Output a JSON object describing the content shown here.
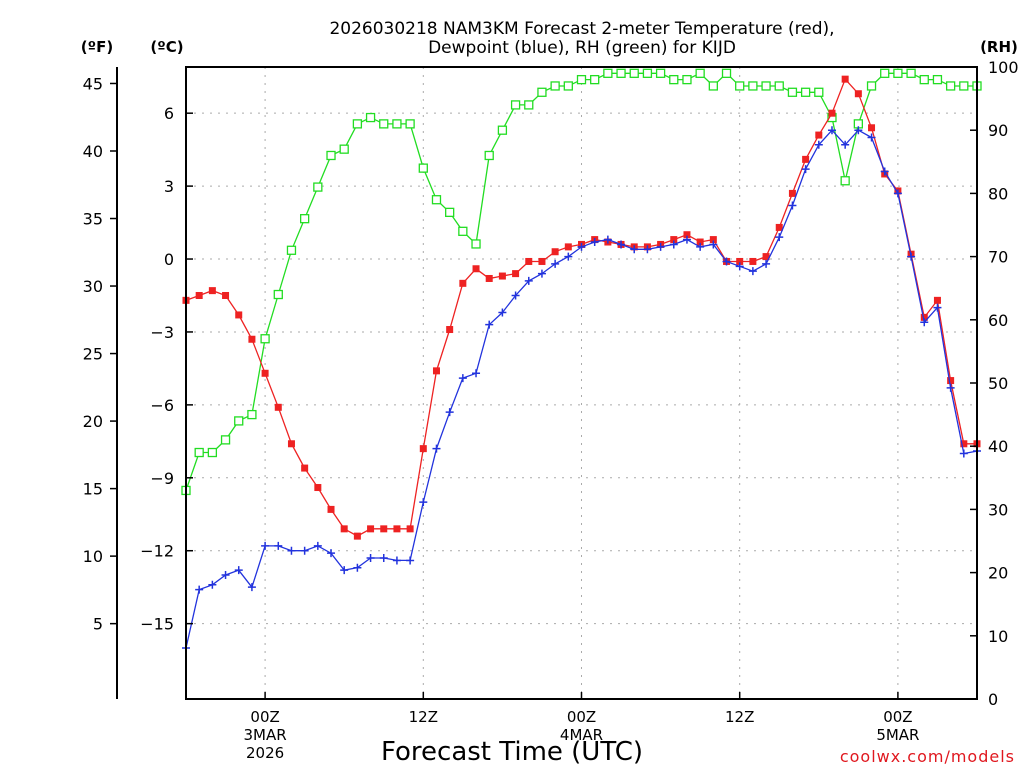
{
  "chart_data": {
    "type": "line",
    "title_line1": "2026030218 NAM3KM Forecast 2-meter Temperature (red),",
    "title_line2": "Dewpoint (blue), RH (green) for KIJD",
    "xlabel": "Forecast Time (UTC)",
    "credit": "coolwx.com/models",
    "units": {
      "f": "(ºF)",
      "c": "(ºC)",
      "rh": "(RH)"
    },
    "colors": {
      "temperature": "#ee2222",
      "dewpoint": "#2233dd",
      "rh": "#22dd22",
      "grid": "#aaaaaa"
    },
    "x_range_hours": [
      0,
      60
    ],
    "x_ticks": [
      {
        "hour": 6,
        "line1": "00Z",
        "line2": "3MAR",
        "line3": "2026"
      },
      {
        "hour": 18,
        "line1": "12Z",
        "line2": "",
        "line3": ""
      },
      {
        "hour": 30,
        "line1": "00Z",
        "line2": "4MAR",
        "line3": ""
      },
      {
        "hour": 42,
        "line1": "12Z",
        "line2": "",
        "line3": ""
      },
      {
        "hour": 54,
        "line1": "00Z",
        "line2": "5MAR",
        "line3": ""
      }
    ],
    "y_celsius_range": [
      -18.1,
      7.9
    ],
    "y_celsius_ticks": [
      6,
      3,
      0,
      -3,
      -6,
      -9,
      -12,
      -15
    ],
    "y_celsius_tick_labels": [
      "6",
      "3",
      "0",
      "−3",
      "−6",
      "−9",
      "−12",
      "−15"
    ],
    "y_fahrenheit_ticks": [
      45,
      40,
      35,
      30,
      25,
      20,
      15,
      10,
      5
    ],
    "y_rh_range": [
      0,
      100
    ],
    "y_rh_ticks": [
      100,
      90,
      80,
      70,
      60,
      50,
      40,
      30,
      20,
      10,
      0
    ],
    "series": [
      {
        "name": "Temperature",
        "unit": "C",
        "values": [
          -1.7,
          -1.5,
          -1.3,
          -1.5,
          -2.3,
          -3.3,
          -4.7,
          -6.1,
          -7.6,
          -8.6,
          -9.4,
          -10.3,
          -11.1,
          -11.4,
          -11.1,
          -11.1,
          -11.1,
          -11.1,
          -7.8,
          -4.6,
          -2.9,
          -1.0,
          -0.4,
          -0.8,
          -0.7,
          -0.6,
          -0.1,
          -0.1,
          0.3,
          0.5,
          0.6,
          0.8,
          0.7,
          0.6,
          0.5,
          0.5,
          0.6,
          0.8,
          1.0,
          0.7,
          0.8,
          -0.1,
          -0.1,
          -0.1,
          0.1,
          1.3,
          2.7,
          4.1,
          5.1,
          6.0,
          7.4,
          6.8,
          5.4,
          3.5,
          2.8,
          0.2,
          -2.4,
          -1.7,
          -5.0,
          -7.6,
          -7.6
        ]
      },
      {
        "name": "Dewpoint",
        "unit": "C",
        "values": [
          -16.0,
          -13.6,
          -13.4,
          -13.0,
          -12.8,
          -13.5,
          -11.8,
          -11.8,
          -12.0,
          -12.0,
          -11.8,
          -12.1,
          -12.8,
          -12.7,
          -12.3,
          -12.3,
          -12.4,
          -12.4,
          -10.0,
          -7.8,
          -6.3,
          -4.9,
          -4.7,
          -2.7,
          -2.2,
          -1.5,
          -0.9,
          -0.6,
          -0.2,
          0.1,
          0.5,
          0.7,
          0.8,
          0.6,
          0.4,
          0.4,
          0.5,
          0.6,
          0.8,
          0.5,
          0.6,
          -0.1,
          -0.3,
          -0.5,
          -0.2,
          0.9,
          2.2,
          3.7,
          4.7,
          5.3,
          4.7,
          5.3,
          5.0,
          3.6,
          2.7,
          0.1,
          -2.6,
          -2.0,
          -5.3,
          -8.0,
          -7.9
        ]
      },
      {
        "name": "RH",
        "unit": "%",
        "values": [
          33,
          39,
          39,
          41,
          44,
          45,
          57,
          64,
          71,
          76,
          81,
          86,
          87,
          91,
          92,
          91,
          91,
          91,
          84,
          79,
          77,
          74,
          72,
          86,
          90,
          94,
          94,
          96,
          97,
          97,
          98,
          98,
          99,
          99,
          99,
          99,
          99,
          98,
          98,
          99,
          97,
          99,
          97,
          97,
          97,
          97,
          96,
          96,
          96,
          92,
          82,
          91,
          97,
          99,
          99,
          99,
          98,
          98,
          97,
          97,
          97
        ]
      }
    ]
  }
}
